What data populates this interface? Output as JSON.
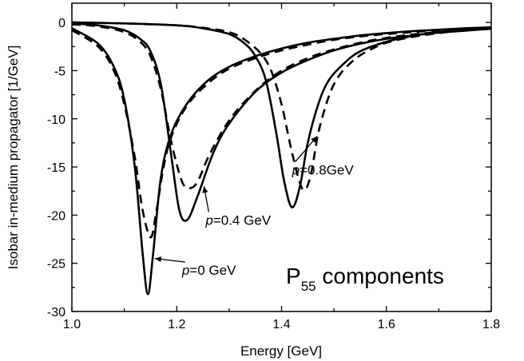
{
  "chart_data": {
    "type": "line",
    "xlabel": "Energy [GeV]",
    "ylabel": "Isobar in-medium propagator [1/GeV]",
    "xlim": [
      1.0,
      1.8
    ],
    "ylim": [
      -30,
      2
    ],
    "x_ticks": [
      "1.0",
      "1.2",
      "1.4",
      "1.6",
      "1.8"
    ],
    "y_ticks": [
      "0",
      "-5",
      "-10",
      "-15",
      "-20",
      "-25",
      "-30"
    ],
    "grid": false,
    "panel_label": {
      "main": "P",
      "sub": "55",
      "rest": " components"
    },
    "series": [
      {
        "style": "solid",
        "color": "#000000",
        "x": [
          1.0,
          1.05,
          1.08,
          1.1,
          1.12,
          1.135,
          1.145,
          1.155,
          1.17,
          1.19,
          1.22,
          1.26,
          1.3,
          1.35,
          1.4,
          1.45,
          1.5,
          1.55,
          1.6,
          1.65,
          1.7,
          1.75,
          1.8
        ],
        "y": [
          -0.6,
          -2.2,
          -4.6,
          -8.0,
          -15.0,
          -24.0,
          -28.2,
          -24.0,
          -16.0,
          -11.5,
          -8.4,
          -6.0,
          -4.6,
          -3.5,
          -2.7,
          -2.1,
          -1.7,
          -1.35,
          -1.1,
          -0.9,
          -0.75,
          -0.6,
          -0.5
        ]
      },
      {
        "style": "dashed",
        "color": "#000000",
        "x": [
          1.0,
          1.05,
          1.08,
          1.1,
          1.12,
          1.135,
          1.15,
          1.16,
          1.175,
          1.19,
          1.22,
          1.26,
          1.3,
          1.35,
          1.4,
          1.45,
          1.5,
          1.55,
          1.6,
          1.65,
          1.7,
          1.75,
          1.8
        ],
        "y": [
          -0.8,
          -2.5,
          -5.0,
          -8.5,
          -14.0,
          -19.5,
          -22.3,
          -20.0,
          -15.0,
          -11.8,
          -8.6,
          -6.3,
          -4.8,
          -3.7,
          -2.9,
          -2.3,
          -1.8,
          -1.45,
          -1.2,
          -1.0,
          -0.8,
          -0.65,
          -0.55
        ]
      },
      {
        "style": "solid",
        "color": "#000000",
        "x": [
          1.0,
          1.05,
          1.1,
          1.13,
          1.15,
          1.17,
          1.19,
          1.205,
          1.22,
          1.24,
          1.27,
          1.3,
          1.35,
          1.4,
          1.45,
          1.5,
          1.55,
          1.6,
          1.65,
          1.7,
          1.75,
          1.8
        ],
        "y": [
          -0.1,
          -0.3,
          -0.8,
          -1.7,
          -3.0,
          -6.5,
          -14.0,
          -19.5,
          -20.5,
          -18.0,
          -13.5,
          -10.5,
          -7.2,
          -5.2,
          -3.9,
          -2.9,
          -2.2,
          -1.7,
          -1.35,
          -1.05,
          -0.85,
          -0.65
        ]
      },
      {
        "style": "dashed",
        "color": "#000000",
        "x": [
          1.0,
          1.05,
          1.1,
          1.13,
          1.15,
          1.17,
          1.19,
          1.21,
          1.225,
          1.24,
          1.26,
          1.29,
          1.32,
          1.36,
          1.4,
          1.45,
          1.5,
          1.55,
          1.6,
          1.65,
          1.7,
          1.75,
          1.8
        ],
        "y": [
          -0.2,
          -0.4,
          -1.0,
          -2.0,
          -3.5,
          -7.0,
          -12.5,
          -16.5,
          -17.2,
          -16.5,
          -14.0,
          -11.0,
          -8.8,
          -6.6,
          -5.0,
          -3.7,
          -2.8,
          -2.1,
          -1.6,
          -1.25,
          -1.0,
          -0.8,
          -0.65
        ]
      },
      {
        "style": "solid",
        "color": "#000000",
        "x": [
          1.0,
          1.1,
          1.2,
          1.25,
          1.3,
          1.33,
          1.35,
          1.37,
          1.39,
          1.405,
          1.42,
          1.435,
          1.45,
          1.47,
          1.49,
          1.52,
          1.55,
          1.6,
          1.65,
          1.7,
          1.75,
          1.8
        ],
        "y": [
          0.0,
          -0.1,
          -0.3,
          -0.6,
          -1.2,
          -2.2,
          -3.5,
          -6.0,
          -11.5,
          -16.5,
          -19.2,
          -17.0,
          -12.5,
          -8.5,
          -6.0,
          -4.2,
          -3.0,
          -2.0,
          -1.4,
          -1.0,
          -0.75,
          -0.55
        ]
      },
      {
        "style": "dashed",
        "color": "#000000",
        "x": [
          1.0,
          1.1,
          1.2,
          1.25,
          1.3,
          1.33,
          1.36,
          1.38,
          1.4,
          1.42,
          1.44,
          1.455,
          1.47,
          1.49,
          1.51,
          1.54,
          1.57,
          1.6,
          1.65,
          1.7,
          1.75,
          1.8
        ],
        "y": [
          0.0,
          -0.1,
          -0.3,
          -0.55,
          -1.0,
          -1.8,
          -3.2,
          -5.0,
          -8.5,
          -13.5,
          -17.3,
          -16.0,
          -11.5,
          -7.7,
          -5.5,
          -3.8,
          -2.8,
          -2.1,
          -1.5,
          -1.1,
          -0.8,
          -0.6
        ]
      }
    ],
    "annotations": [
      {
        "italic": "p",
        "text": "=0 GeV",
        "at": [
          1.21,
          -26.2
        ],
        "arrow_to": [
          1.158,
          -24.5
        ]
      },
      {
        "italic": "p",
        "text": "=0.4 GeV",
        "at": [
          1.255,
          -21.0
        ],
        "arrow_to": [
          1.252,
          -17.0
        ]
      },
      {
        "italic": "p",
        "text": "=0.8GeV",
        "at": [
          1.42,
          -15.8
        ],
        "arrow_to": [
          1.468,
          -11.8
        ]
      }
    ]
  }
}
